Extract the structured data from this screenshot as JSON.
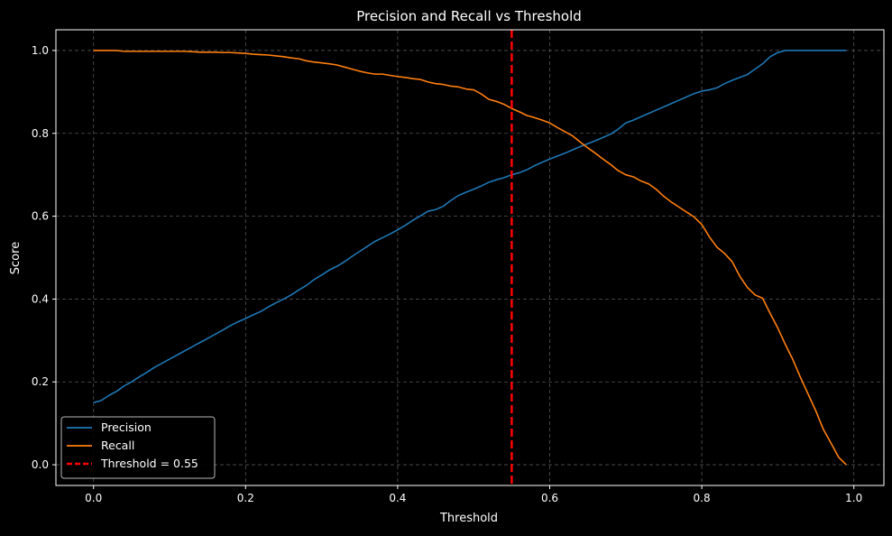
{
  "chart_data": {
    "type": "line",
    "title": "Precision and Recall vs Threshold",
    "xlabel": "Threshold",
    "ylabel": "Score",
    "xlim": [
      -0.0495,
      1.0395
    ],
    "ylim": [
      -0.05,
      1.05
    ],
    "xticks": [
      0.0,
      0.2,
      0.4,
      0.6,
      0.8,
      1.0
    ],
    "xtick_labels": [
      "0.0",
      "0.2",
      "0.4",
      "0.6",
      "0.8",
      "1.0"
    ],
    "yticks": [
      0.0,
      0.2,
      0.4,
      0.6,
      0.8,
      1.0
    ],
    "ytick_labels": [
      "0.0",
      "0.2",
      "0.4",
      "0.6",
      "0.8",
      "1.0"
    ],
    "grid": true,
    "legend_position": "lower-left",
    "background": "#000000",
    "series": [
      {
        "name": "Precision",
        "color": "#1f77b4",
        "x": [
          0.0,
          0.01,
          0.02,
          0.03,
          0.04,
          0.05,
          0.06,
          0.07,
          0.08,
          0.09,
          0.1,
          0.11,
          0.12,
          0.13,
          0.14,
          0.15,
          0.16,
          0.17,
          0.18,
          0.19,
          0.2,
          0.21,
          0.22,
          0.23,
          0.24,
          0.25,
          0.26,
          0.27,
          0.28,
          0.29,
          0.3,
          0.31,
          0.32,
          0.33,
          0.34,
          0.35,
          0.36,
          0.37,
          0.38,
          0.39,
          0.4,
          0.41,
          0.42,
          0.43,
          0.44,
          0.45,
          0.46,
          0.47,
          0.48,
          0.49,
          0.5,
          0.51,
          0.52,
          0.53,
          0.54,
          0.55,
          0.56,
          0.57,
          0.58,
          0.59,
          0.6,
          0.61,
          0.62,
          0.63,
          0.64,
          0.65,
          0.66,
          0.67,
          0.68,
          0.69,
          0.7,
          0.71,
          0.72,
          0.73,
          0.74,
          0.75,
          0.76,
          0.77,
          0.78,
          0.79,
          0.8,
          0.81,
          0.82,
          0.83,
          0.84,
          0.85,
          0.86,
          0.87,
          0.88,
          0.89,
          0.9,
          0.91,
          0.92,
          0.93,
          0.94,
          0.95,
          0.96,
          0.97,
          0.98,
          0.99
        ],
        "values": [
          0.15,
          0.155,
          0.167,
          0.177,
          0.19,
          0.2,
          0.212,
          0.223,
          0.235,
          0.245,
          0.255,
          0.265,
          0.275,
          0.285,
          0.295,
          0.305,
          0.315,
          0.325,
          0.336,
          0.345,
          0.353,
          0.362,
          0.37,
          0.381,
          0.391,
          0.4,
          0.41,
          0.422,
          0.433,
          0.447,
          0.458,
          0.47,
          0.479,
          0.49,
          0.503,
          0.515,
          0.527,
          0.539,
          0.548,
          0.557,
          0.567,
          0.578,
          0.59,
          0.601,
          0.612,
          0.616,
          0.624,
          0.638,
          0.65,
          0.658,
          0.665,
          0.673,
          0.682,
          0.688,
          0.693,
          0.7,
          0.705,
          0.712,
          0.722,
          0.73,
          0.738,
          0.745,
          0.752,
          0.76,
          0.768,
          0.775,
          0.782,
          0.79,
          0.798,
          0.81,
          0.825,
          0.832,
          0.84,
          0.848,
          0.856,
          0.864,
          0.872,
          0.88,
          0.888,
          0.896,
          0.902,
          0.905,
          0.91,
          0.92,
          0.928,
          0.935,
          0.942,
          0.955,
          0.968,
          0.985,
          0.995,
          1.0,
          1.0,
          1.0,
          1.0,
          1.0,
          1.0,
          1.0,
          1.0,
          1.0
        ]
      },
      {
        "name": "Recall",
        "color": "#ff7f0e",
        "x": [
          0.0,
          0.01,
          0.02,
          0.03,
          0.04,
          0.05,
          0.06,
          0.07,
          0.08,
          0.09,
          0.1,
          0.11,
          0.12,
          0.13,
          0.14,
          0.15,
          0.16,
          0.17,
          0.18,
          0.19,
          0.2,
          0.21,
          0.22,
          0.23,
          0.24,
          0.25,
          0.26,
          0.27,
          0.28,
          0.29,
          0.3,
          0.31,
          0.32,
          0.33,
          0.34,
          0.35,
          0.36,
          0.37,
          0.38,
          0.39,
          0.4,
          0.41,
          0.42,
          0.43,
          0.44,
          0.45,
          0.46,
          0.47,
          0.48,
          0.49,
          0.5,
          0.51,
          0.52,
          0.53,
          0.54,
          0.55,
          0.56,
          0.57,
          0.58,
          0.59,
          0.6,
          0.61,
          0.62,
          0.63,
          0.64,
          0.65,
          0.66,
          0.67,
          0.68,
          0.69,
          0.7,
          0.71,
          0.72,
          0.73,
          0.74,
          0.75,
          0.76,
          0.77,
          0.78,
          0.79,
          0.8,
          0.81,
          0.82,
          0.83,
          0.84,
          0.85,
          0.86,
          0.87,
          0.88,
          0.89,
          0.9,
          0.91,
          0.92,
          0.93,
          0.94,
          0.95,
          0.96,
          0.97,
          0.98,
          0.99
        ],
        "values": [
          1.0,
          1.0,
          1.0,
          1.0,
          0.998,
          0.998,
          0.998,
          0.998,
          0.998,
          0.998,
          0.998,
          0.998,
          0.998,
          0.997,
          0.996,
          0.996,
          0.996,
          0.995,
          0.995,
          0.994,
          0.993,
          0.991,
          0.99,
          0.989,
          0.987,
          0.985,
          0.982,
          0.98,
          0.975,
          0.972,
          0.97,
          0.968,
          0.965,
          0.96,
          0.955,
          0.95,
          0.946,
          0.943,
          0.943,
          0.94,
          0.937,
          0.935,
          0.932,
          0.93,
          0.924,
          0.92,
          0.918,
          0.914,
          0.912,
          0.907,
          0.905,
          0.895,
          0.882,
          0.877,
          0.87,
          0.86,
          0.852,
          0.843,
          0.838,
          0.832,
          0.825,
          0.814,
          0.804,
          0.794,
          0.779,
          0.765,
          0.752,
          0.738,
          0.725,
          0.71,
          0.7,
          0.695,
          0.685,
          0.678,
          0.665,
          0.648,
          0.634,
          0.622,
          0.61,
          0.598,
          0.58,
          0.55,
          0.525,
          0.51,
          0.49,
          0.455,
          0.428,
          0.41,
          0.402,
          0.365,
          0.33,
          0.29,
          0.253,
          0.21,
          0.17,
          0.13,
          0.085,
          0.052,
          0.018,
          0.0
        ]
      }
    ],
    "reference_lines": [
      {
        "orientation": "vertical",
        "x": 0.55,
        "label": "Threshold = 0.55",
        "color": "#ff0000",
        "style": "dashed"
      }
    ],
    "legend": [
      "Precision",
      "Recall",
      "Threshold = 0.55"
    ]
  }
}
